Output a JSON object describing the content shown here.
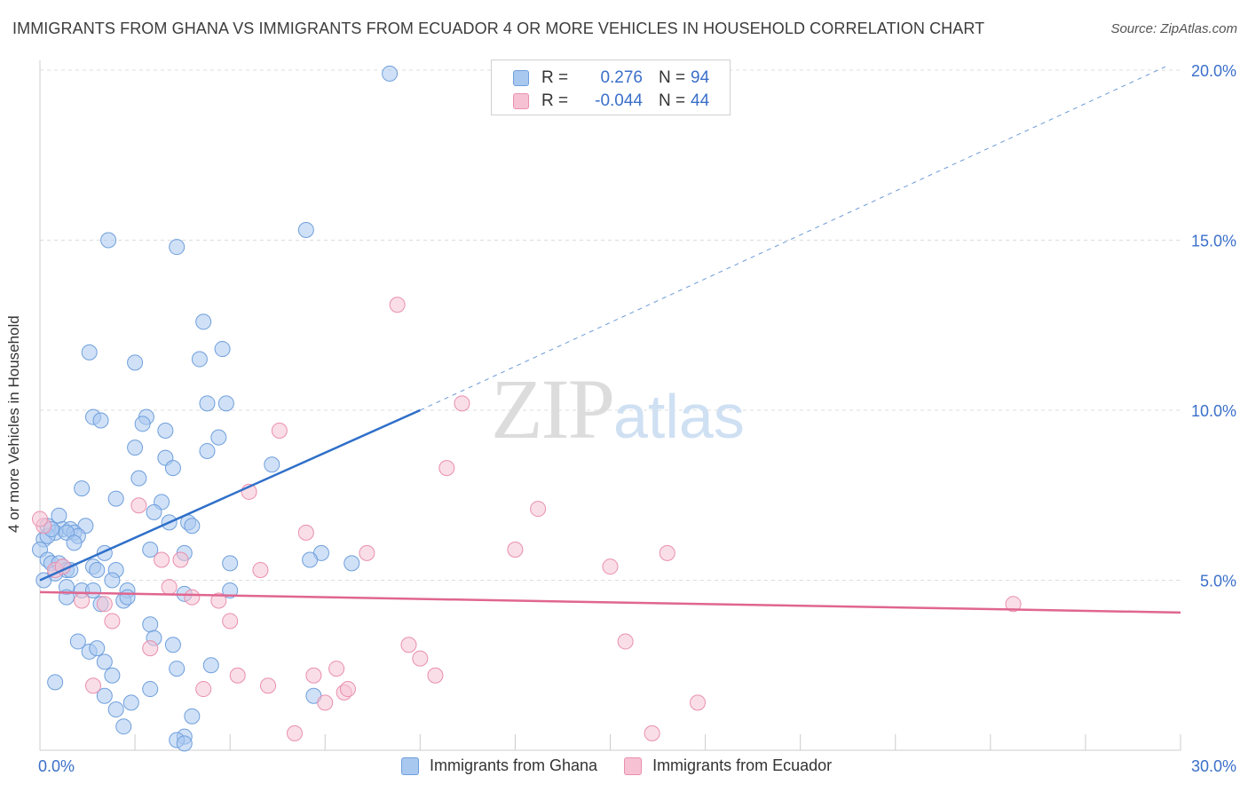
{
  "title": "IMMIGRANTS FROM GHANA VS IMMIGRANTS FROM ECUADOR 4 OR MORE VEHICLES IN HOUSEHOLD CORRELATION CHART",
  "source": "Source: ZipAtlas.com",
  "watermark": {
    "zip": "ZIP",
    "atlas": "atlas"
  },
  "legend_top": [
    {
      "r_label": "R =",
      "r_value": "0.276",
      "n_label": "N =",
      "n_value": "94"
    },
    {
      "r_label": "R =",
      "r_value": "-0.044",
      "n_label": "N =",
      "n_value": "44"
    }
  ],
  "legend_bottom": [
    {
      "label": "Immigrants from Ghana"
    },
    {
      "label": "Immigrants from Ecuador"
    }
  ],
  "colors": {
    "ghana_fill": "#a9c8f0",
    "ghana_stroke": "#6f9fdc",
    "ghana_line": "#2e6fc9",
    "ecuador_fill": "#f6c2d3",
    "ecuador_stroke": "#e98fae",
    "ecuador_line": "#e0668f",
    "axis_text": "#3a6fc9",
    "grid": "#dddddd"
  },
  "chart_data": {
    "type": "scatter",
    "xlabel": "",
    "ylabel": "4 or more Vehicles in Household",
    "xlim": [
      0,
      30
    ],
    "ylim": [
      0,
      20.5
    ],
    "x_tick_labels": [
      {
        "value": 0,
        "label": "0.0%"
      },
      {
        "value": 30,
        "label": "30.0%"
      }
    ],
    "y_tick_labels": [
      {
        "value": 5,
        "label": "5.0%"
      },
      {
        "value": 10,
        "label": "10.0%"
      },
      {
        "value": 15,
        "label": "15.0%"
      },
      {
        "value": 20,
        "label": "20.0%"
      }
    ],
    "grid": "horizontal dashed",
    "series": [
      {
        "name": "Immigrants from Ghana",
        "trend": {
          "x": [
            0,
            10
          ],
          "y": [
            5.0,
            10.0
          ],
          "extrapolated_to": {
            "x": 29.6,
            "y": 20.1
          }
        },
        "points": [
          [
            9.2,
            19.9
          ],
          [
            1.8,
            15.0
          ],
          [
            3.6,
            14.8
          ],
          [
            7.0,
            15.3
          ],
          [
            4.3,
            12.6
          ],
          [
            1.3,
            11.7
          ],
          [
            2.5,
            11.4
          ],
          [
            4.2,
            11.5
          ],
          [
            4.8,
            11.8
          ],
          [
            4.4,
            10.2
          ],
          [
            4.9,
            10.2
          ],
          [
            1.4,
            9.8
          ],
          [
            1.6,
            9.7
          ],
          [
            2.8,
            9.8
          ],
          [
            2.7,
            9.6
          ],
          [
            3.3,
            9.4
          ],
          [
            4.7,
            9.2
          ],
          [
            2.5,
            8.9
          ],
          [
            4.4,
            8.8
          ],
          [
            3.3,
            8.6
          ],
          [
            3.5,
            8.3
          ],
          [
            6.1,
            8.4
          ],
          [
            2.6,
            8.0
          ],
          [
            1.1,
            7.7
          ],
          [
            2.0,
            7.4
          ],
          [
            3.2,
            7.3
          ],
          [
            3.0,
            7.0
          ],
          [
            0.5,
            6.9
          ],
          [
            1.2,
            6.6
          ],
          [
            3.4,
            6.7
          ],
          [
            3.9,
            6.7
          ],
          [
            4.0,
            6.6
          ],
          [
            0.2,
            6.6
          ],
          [
            0.6,
            6.5
          ],
          [
            0.8,
            6.5
          ],
          [
            0.9,
            6.4
          ],
          [
            1.0,
            6.3
          ],
          [
            0.1,
            6.2
          ],
          [
            0.4,
            6.4
          ],
          [
            0.7,
            6.4
          ],
          [
            0.9,
            6.1
          ],
          [
            0.0,
            5.9
          ],
          [
            1.7,
            5.8
          ],
          [
            2.9,
            5.9
          ],
          [
            3.8,
            5.8
          ],
          [
            7.4,
            5.8
          ],
          [
            5.0,
            5.5
          ],
          [
            7.1,
            5.6
          ],
          [
            8.2,
            5.5
          ],
          [
            0.2,
            5.6
          ],
          [
            0.3,
            5.5
          ],
          [
            0.5,
            5.5
          ],
          [
            0.6,
            5.4
          ],
          [
            0.7,
            5.3
          ],
          [
            0.8,
            5.3
          ],
          [
            1.4,
            5.4
          ],
          [
            1.5,
            5.3
          ],
          [
            2.0,
            5.3
          ],
          [
            0.4,
            5.2
          ],
          [
            0.1,
            5.0
          ],
          [
            1.9,
            5.0
          ],
          [
            0.7,
            4.8
          ],
          [
            1.1,
            4.7
          ],
          [
            1.4,
            4.7
          ],
          [
            2.3,
            4.7
          ],
          [
            3.8,
            4.6
          ],
          [
            5.0,
            4.7
          ],
          [
            0.7,
            4.5
          ],
          [
            2.2,
            4.4
          ],
          [
            2.3,
            4.5
          ],
          [
            1.6,
            4.3
          ],
          [
            2.9,
            3.7
          ],
          [
            1.0,
            3.2
          ],
          [
            3.0,
            3.3
          ],
          [
            3.5,
            3.1
          ],
          [
            1.3,
            2.9
          ],
          [
            1.5,
            3.0
          ],
          [
            1.7,
            2.6
          ],
          [
            4.5,
            2.5
          ],
          [
            3.6,
            2.4
          ],
          [
            1.9,
            2.2
          ],
          [
            0.4,
            2.0
          ],
          [
            1.7,
            1.6
          ],
          [
            2.4,
            1.4
          ],
          [
            2.9,
            1.8
          ],
          [
            7.2,
            1.6
          ],
          [
            2.0,
            1.2
          ],
          [
            2.2,
            0.7
          ],
          [
            3.8,
            0.4
          ],
          [
            3.6,
            0.3
          ],
          [
            3.8,
            0.2
          ],
          [
            4.0,
            1.0
          ],
          [
            0.2,
            6.3
          ],
          [
            0.3,
            6.5
          ]
        ]
      },
      {
        "name": "Immigrants from Ecuador",
        "trend": {
          "x": [
            0,
            30
          ],
          "y": [
            4.65,
            4.05
          ]
        },
        "points": [
          [
            0.1,
            6.6
          ],
          [
            0.4,
            5.3
          ],
          [
            0.6,
            5.4
          ],
          [
            1.1,
            4.4
          ],
          [
            1.4,
            1.9
          ],
          [
            1.7,
            4.3
          ],
          [
            1.9,
            3.8
          ],
          [
            2.6,
            7.2
          ],
          [
            2.9,
            3.0
          ],
          [
            3.2,
            5.6
          ],
          [
            3.4,
            4.8
          ],
          [
            3.7,
            5.6
          ],
          [
            4.0,
            4.5
          ],
          [
            4.3,
            1.8
          ],
          [
            4.7,
            4.4
          ],
          [
            5.0,
            3.8
          ],
          [
            5.2,
            2.2
          ],
          [
            5.5,
            7.6
          ],
          [
            5.8,
            5.3
          ],
          [
            6.0,
            1.9
          ],
          [
            6.3,
            9.4
          ],
          [
            6.7,
            0.5
          ],
          [
            7.0,
            6.4
          ],
          [
            7.2,
            2.2
          ],
          [
            7.5,
            1.4
          ],
          [
            7.8,
            2.4
          ],
          [
            8.0,
            1.7
          ],
          [
            8.1,
            1.8
          ],
          [
            8.6,
            5.8
          ],
          [
            9.4,
            13.1
          ],
          [
            9.7,
            3.1
          ],
          [
            10.0,
            2.7
          ],
          [
            10.4,
            2.2
          ],
          [
            10.7,
            8.3
          ],
          [
            11.1,
            10.2
          ],
          [
            12.5,
            5.9
          ],
          [
            13.1,
            7.1
          ],
          [
            15.0,
            5.4
          ],
          [
            15.4,
            3.2
          ],
          [
            16.1,
            0.5
          ],
          [
            16.5,
            5.8
          ],
          [
            17.3,
            1.4
          ],
          [
            25.6,
            4.3
          ],
          [
            0.0,
            6.8
          ]
        ]
      }
    ]
  }
}
